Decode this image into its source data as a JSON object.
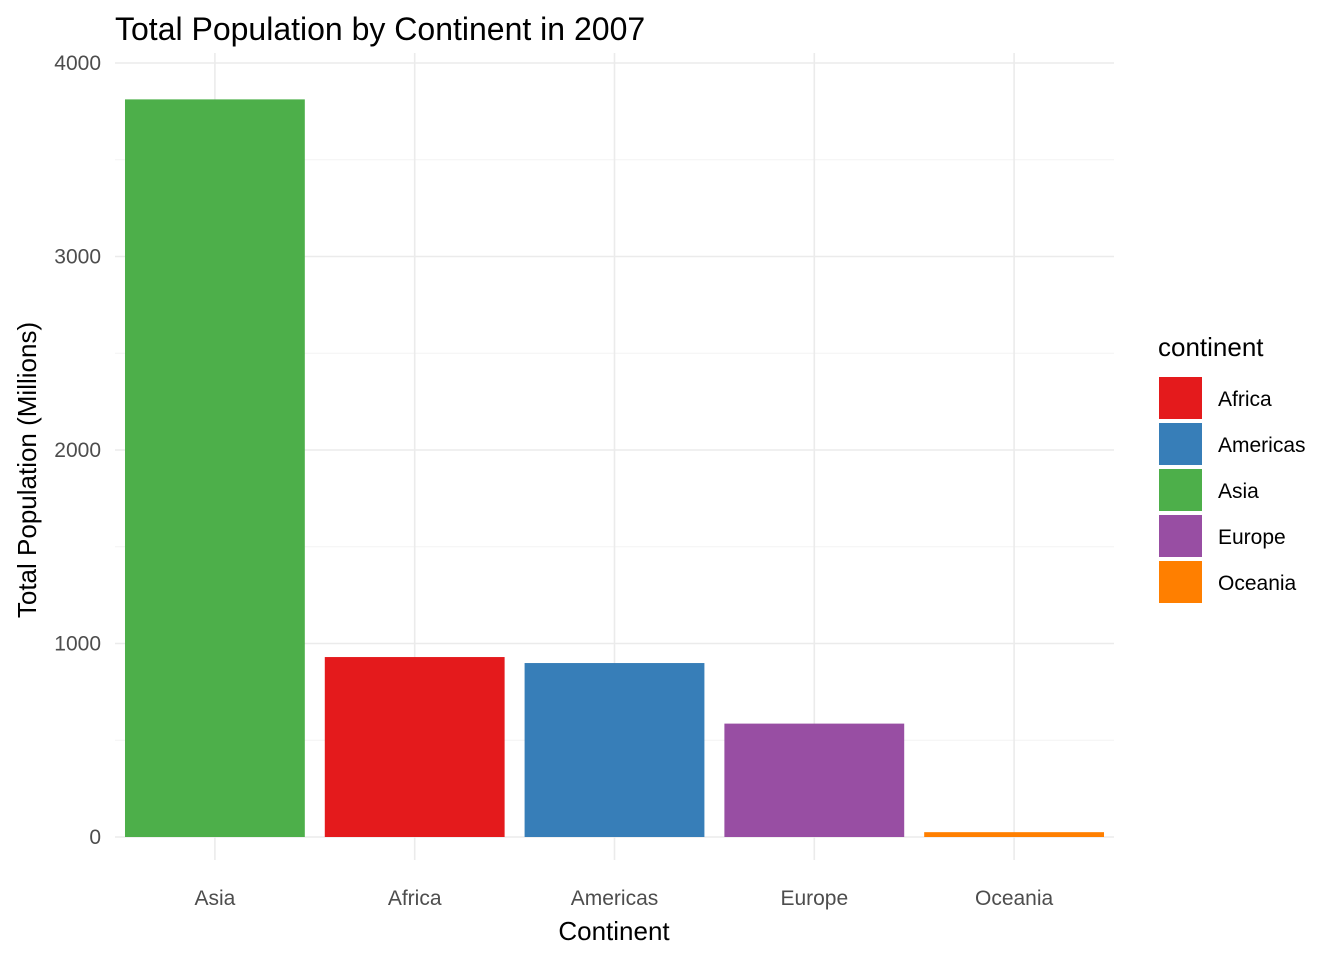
{
  "chart_data": {
    "type": "bar",
    "title": "Total Population by Continent in 2007",
    "xlabel": "Continent",
    "ylabel": "Total Population (Millions)",
    "categories": [
      "Asia",
      "Africa",
      "Americas",
      "Europe",
      "Oceania"
    ],
    "values": [
      3812,
      930,
      899,
      586,
      25
    ],
    "colors": [
      "#4DAF4A",
      "#E41A1C",
      "#377EB8",
      "#984EA3",
      "#FF7F00"
    ],
    "ylim": [
      0,
      4000
    ],
    "yticks": [
      "0",
      "1000",
      "2000",
      "3000",
      "4000"
    ],
    "grid": true,
    "legend": {
      "title": "continent",
      "position": "right",
      "items": [
        {
          "label": "Africa",
          "color": "#E41A1C"
        },
        {
          "label": "Americas",
          "color": "#377EB8"
        },
        {
          "label": "Asia",
          "color": "#4DAF4A"
        },
        {
          "label": "Europe",
          "color": "#984EA3"
        },
        {
          "label": "Oceania",
          "color": "#FF7F00"
        }
      ]
    }
  }
}
